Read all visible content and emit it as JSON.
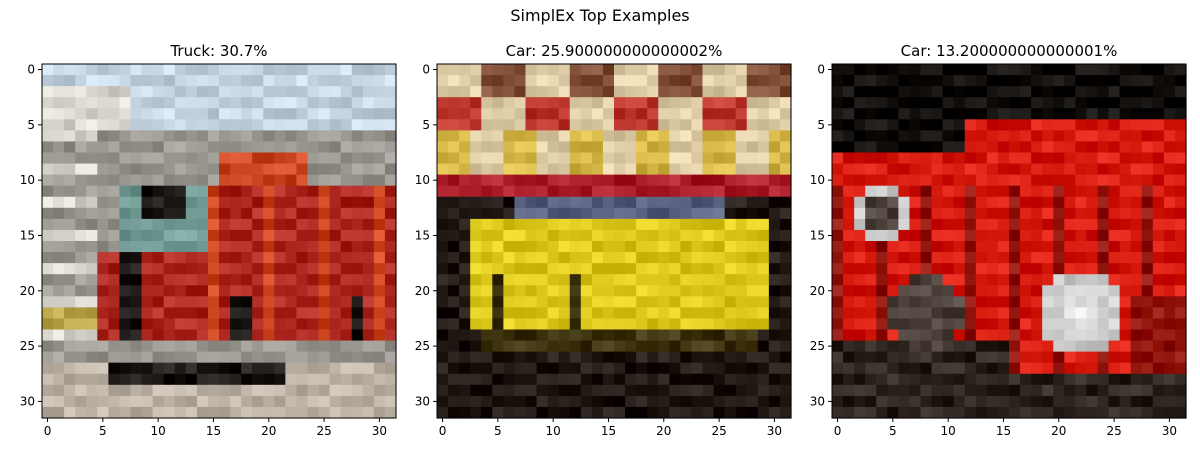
{
  "figure": {
    "suptitle": "SimplEx Top Examples"
  },
  "chart_data": [
    {
      "type": "heatmap",
      "title": "Truck: 30.7%",
      "x_ticks": [
        "0",
        "5",
        "10",
        "15",
        "20",
        "25",
        "30"
      ],
      "y_ticks": [
        "0",
        "5",
        "10",
        "15",
        "20",
        "25",
        "30"
      ],
      "x_range": [
        -0.5,
        31.5
      ],
      "y_range": [
        -0.5,
        31.5
      ],
      "image_size": [
        32,
        32
      ],
      "grid": false,
      "description_palette": {
        "sky": "#cfe0ee",
        "body": "#b8332c",
        "bright_red": "#d9532f",
        "dark": "#2a2623",
        "grey": "#a6a29c",
        "cab": "#7fa7a2",
        "ground": "#c8bfb2",
        "yellow": "#c9b65a",
        "white": "#e6e2dc"
      }
    },
    {
      "type": "heatmap",
      "title": "Car: 25.900000000000002%",
      "x_ticks": [
        "0",
        "5",
        "10",
        "15",
        "20",
        "25",
        "30"
      ],
      "y_ticks": [
        "0",
        "5",
        "10",
        "15",
        "20",
        "25",
        "30"
      ],
      "x_range": [
        -0.5,
        31.5
      ],
      "y_range": [
        -0.5,
        31.5
      ],
      "image_size": [
        32,
        32
      ],
      "grid": false,
      "description_palette": {
        "cream": "#ead9b2",
        "brown": "#8c5a43",
        "red": "#c8443a",
        "gold": "#e0c352",
        "crimson": "#b82a35",
        "dark": "#2d241f",
        "yellow": "#e9d52a",
        "window": "#66708e",
        "shadow": "#4a3f1b"
      }
    },
    {
      "type": "heatmap",
      "title": "Car: 13.200000000000001%",
      "x_ticks": [
        "0",
        "5",
        "10",
        "15",
        "20",
        "25",
        "30"
      ],
      "y_ticks": [
        "0",
        "5",
        "10",
        "15",
        "20",
        "25",
        "30"
      ],
      "x_range": [
        -0.5,
        31.5
      ],
      "y_range": [
        -0.5,
        31.5
      ],
      "image_size": [
        32,
        32
      ],
      "grid": false,
      "description_palette": {
        "black": "#1b1714",
        "red": "#e2261a",
        "dark_red": "#9b1e17",
        "chrome": "#d8d8d8",
        "grey": "#5b504a",
        "white": "#f1f1f1",
        "ground": "#3a302a"
      }
    }
  ]
}
